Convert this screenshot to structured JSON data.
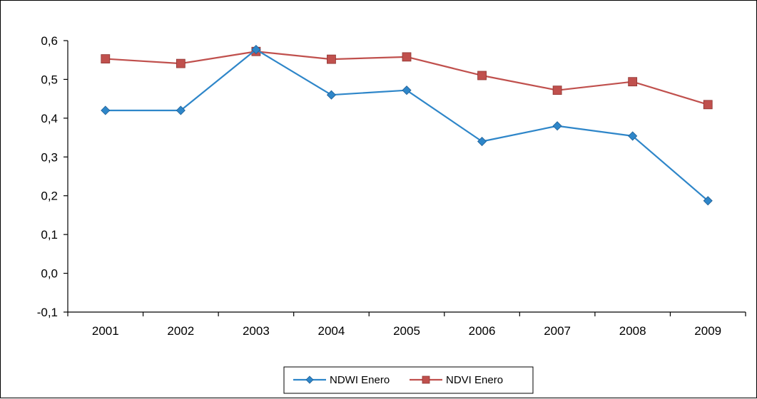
{
  "chart_data": {
    "type": "line",
    "title": "",
    "xlabel": "",
    "ylabel": "",
    "categories": [
      "2001",
      "2002",
      "2003",
      "2004",
      "2005",
      "2006",
      "2007",
      "2008",
      "2009"
    ],
    "ylim": [
      -0.1,
      0.6
    ],
    "yticks": [
      -0.1,
      0.0,
      0.1,
      0.2,
      0.3,
      0.4,
      0.5,
      0.6
    ],
    "ytick_labels": [
      "-0,1",
      "0,0",
      "0,1",
      "0,2",
      "0,3",
      "0,4",
      "0,5",
      "0,6"
    ],
    "grid": false,
    "legend_position": "bottom-center",
    "series": [
      {
        "name": "NDWI Enero",
        "color": "#2e86c9",
        "marker": "diamond",
        "values": [
          0.42,
          0.42,
          0.577,
          0.46,
          0.472,
          0.34,
          0.38,
          0.354,
          0.187
        ]
      },
      {
        "name": "NDVI Enero",
        "color": "#c0504d",
        "marker": "square",
        "values": [
          0.553,
          0.541,
          0.572,
          0.552,
          0.558,
          0.51,
          0.472,
          0.494,
          0.435
        ]
      }
    ]
  }
}
